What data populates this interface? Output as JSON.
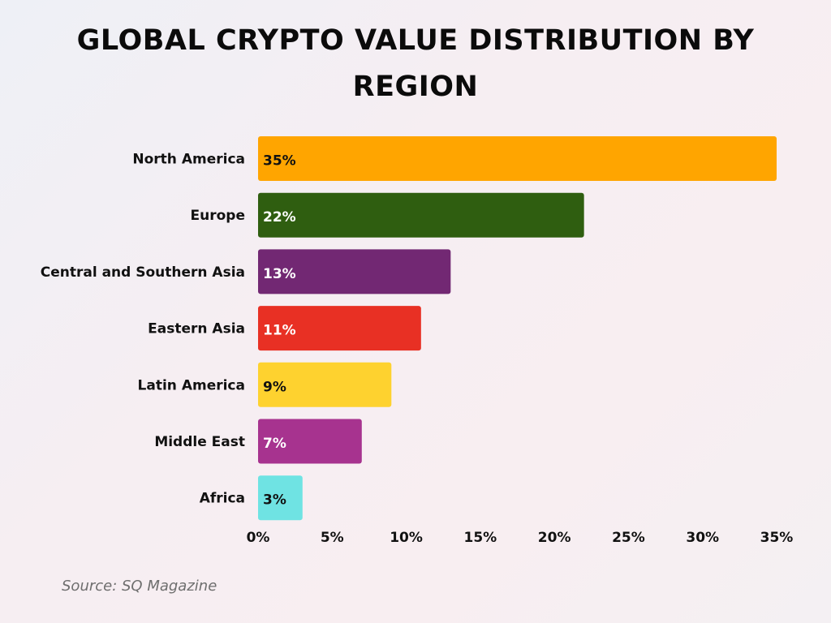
{
  "chart_data": {
    "type": "bar",
    "orientation": "horizontal",
    "title": "GLOBAL CRYPTO VALUE DISTRIBUTION BY REGION",
    "categories": [
      "North America",
      "Europe",
      "Central and Southern Asia",
      "Eastern Asia",
      "Latin America",
      "Middle East",
      "Africa"
    ],
    "values": [
      35,
      22,
      13,
      11,
      9,
      7,
      3
    ],
    "data_labels": [
      "35%",
      "22%",
      "13%",
      "11%",
      "9%",
      "7%",
      "3%"
    ],
    "colors": [
      "#ffa500",
      "#2f5e10",
      "#722873",
      "#e83024",
      "#fed22f",
      "#a7338f",
      "#6fe3e3"
    ],
    "label_colors": [
      "#111111",
      "#ffffff",
      "#ffffff",
      "#ffffff",
      "#111111",
      "#ffffff",
      "#111111"
    ],
    "xlim": [
      0,
      35
    ],
    "xticks": [
      0,
      5,
      10,
      15,
      20,
      25,
      30,
      35
    ],
    "xtick_labels": [
      "0%",
      "5%",
      "10%",
      "15%",
      "20%",
      "25%",
      "30%",
      "35%"
    ],
    "grid": false,
    "legend": "none"
  },
  "source": "Source: SQ Magazine"
}
